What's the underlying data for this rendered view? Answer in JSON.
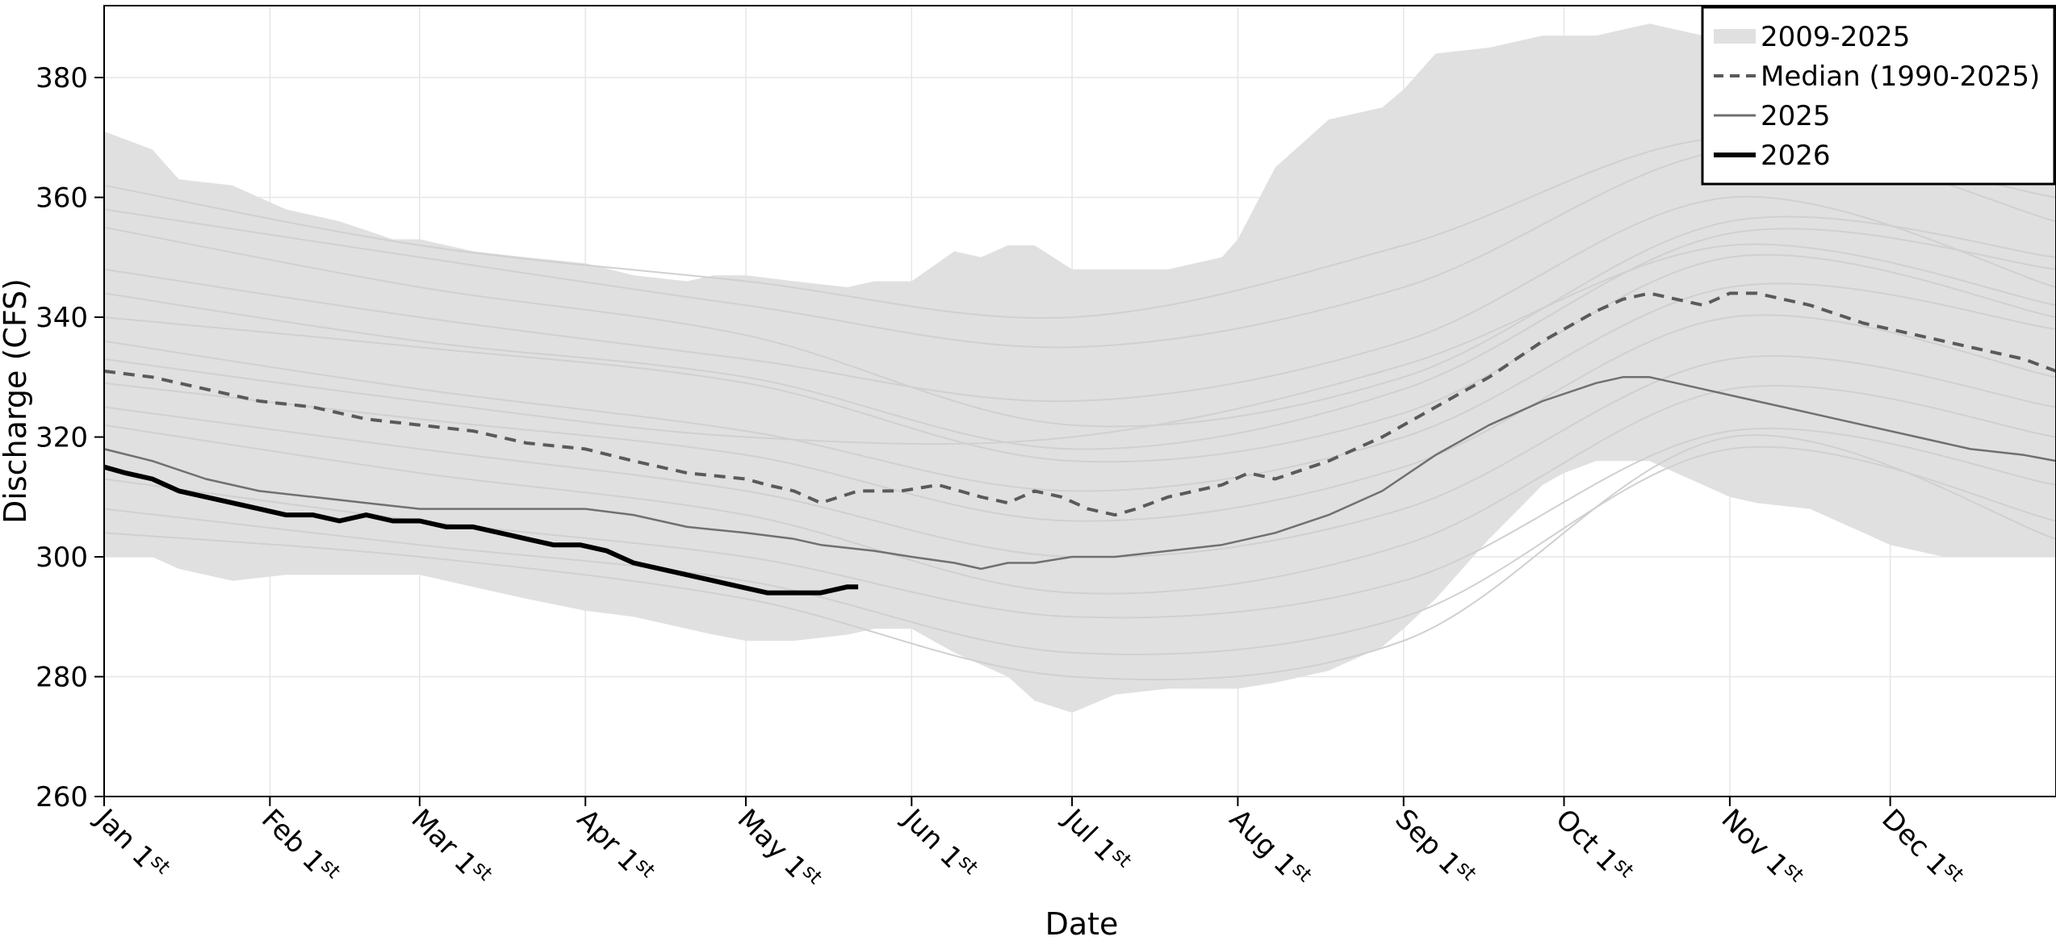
{
  "chart_data": {
    "type": "line",
    "title": "",
    "xlabel": "Date",
    "ylabel": "Discharge (CFS)",
    "ylim": [
      260,
      392
    ],
    "xlim_day_of_year": [
      1,
      366
    ],
    "yticks": [
      260,
      280,
      300,
      320,
      340,
      360,
      380
    ],
    "xticks": [
      {
        "day": 1,
        "month": "Jan",
        "num": "1",
        "sup": "st"
      },
      {
        "day": 32,
        "month": "Feb",
        "num": "1",
        "sup": "st"
      },
      {
        "day": 60,
        "month": "Mar",
        "num": "1",
        "sup": "st"
      },
      {
        "day": 91,
        "month": "Apr",
        "num": "1",
        "sup": "st"
      },
      {
        "day": 121,
        "month": "May",
        "num": "1",
        "sup": "st"
      },
      {
        "day": 152,
        "month": "Jun",
        "num": "1",
        "sup": "st"
      },
      {
        "day": 182,
        "month": "Jul",
        "num": "1",
        "sup": "st"
      },
      {
        "day": 213,
        "month": "Aug",
        "num": "1",
        "sup": "st"
      },
      {
        "day": 244,
        "month": "Sep",
        "num": "1",
        "sup": "st"
      },
      {
        "day": 274,
        "month": "Oct",
        "num": "1",
        "sup": "st"
      },
      {
        "day": 305,
        "month": "Nov",
        "num": "1",
        "sup": "st"
      },
      {
        "day": 335,
        "month": "Dec",
        "num": "1",
        "sup": "st"
      }
    ],
    "grid": true,
    "legend_position": "top-right",
    "legend": [
      {
        "label": "2009-2025",
        "style": "band"
      },
      {
        "label": "Median (1990-2025)",
        "style": "dashed"
      },
      {
        "label": "2025",
        "style": "thin"
      },
      {
        "label": "2026",
        "style": "thick"
      }
    ],
    "colors": {
      "band": "#e0e0e0",
      "faint_years": "#d0d0d0",
      "median": "#5a5a5a",
      "year_2025": "#707070",
      "year_2026": "#000000",
      "grid": "#e6e6e6"
    },
    "band": {
      "name": "2009-2025",
      "x": [
        1,
        10,
        15,
        25,
        35,
        45,
        55,
        60,
        70,
        80,
        91,
        100,
        110,
        115,
        121,
        130,
        140,
        145,
        152,
        160,
        165,
        170,
        175,
        182,
        190,
        200,
        210,
        213,
        220,
        230,
        240,
        244,
        250,
        260,
        270,
        274,
        280,
        290,
        295,
        300,
        305,
        310,
        320,
        325,
        330,
        335,
        345,
        355,
        366
      ],
      "upper": [
        371,
        368,
        363,
        362,
        358,
        356,
        353,
        353,
        351,
        350,
        349,
        347,
        346,
        347,
        347,
        346,
        345,
        346,
        346,
        351,
        350,
        352,
        352,
        348,
        348,
        348,
        350,
        353,
        365,
        373,
        375,
        378,
        384,
        385,
        387,
        387,
        387,
        389,
        388,
        387,
        385,
        380,
        375,
        372,
        370,
        368,
        366,
        364,
        362
      ],
      "lower": [
        300,
        300,
        298,
        296,
        297,
        297,
        297,
        297,
        295,
        293,
        291,
        290,
        288,
        287,
        286,
        286,
        287,
        288,
        288,
        284,
        282,
        280,
        276,
        274,
        277,
        278,
        278,
        278,
        279,
        281,
        285,
        288,
        293,
        303,
        312,
        314,
        316,
        316,
        314,
        312,
        310,
        309,
        308,
        306,
        304,
        302,
        300,
        300,
        300
      ]
    },
    "series": [
      {
        "name": "Median (1990-2025)",
        "x": [
          1,
          10,
          20,
          30,
          40,
          50,
          60,
          70,
          80,
          91,
          100,
          110,
          121,
          125,
          130,
          135,
          142,
          150,
          157,
          165,
          170,
          175,
          180,
          185,
          190,
          194,
          200,
          210,
          215,
          220,
          230,
          240,
          250,
          260,
          270,
          274,
          280,
          285,
          290,
          295,
          300,
          305,
          310,
          315,
          320,
          330,
          340,
          350,
          360,
          366
        ],
        "y": [
          331,
          330,
          328,
          326,
          325,
          323,
          322,
          321,
          319,
          318,
          316,
          314,
          313,
          312,
          311,
          309,
          311,
          311,
          312,
          310,
          309,
          311,
          310,
          308,
          307,
          308,
          310,
          312,
          314,
          313,
          316,
          320,
          325,
          330,
          336,
          338,
          341,
          343,
          344,
          343,
          342,
          344,
          344,
          343,
          342,
          339,
          337,
          335,
          333,
          331
        ]
      },
      {
        "name": "2025",
        "x": [
          1,
          10,
          20,
          30,
          40,
          50,
          60,
          70,
          80,
          91,
          100,
          110,
          121,
          130,
          135,
          145,
          152,
          160,
          165,
          170,
          175,
          182,
          190,
          200,
          210,
          220,
          230,
          240,
          250,
          260,
          270,
          280,
          285,
          290,
          295,
          300,
          310,
          320,
          330,
          340,
          350,
          360,
          366
        ],
        "y": [
          318,
          316,
          313,
          311,
          310,
          309,
          308,
          308,
          308,
          308,
          307,
          305,
          304,
          303,
          302,
          301,
          300,
          299,
          298,
          299,
          299,
          300,
          300,
          301,
          302,
          304,
          307,
          311,
          317,
          322,
          326,
          329,
          330,
          330,
          329,
          328,
          326,
          324,
          322,
          320,
          318,
          317,
          316
        ]
      },
      {
        "name": "2026",
        "x": [
          1,
          5,
          10,
          15,
          20,
          25,
          30,
          35,
          40,
          45,
          50,
          55,
          60,
          65,
          70,
          75,
          80,
          85,
          90,
          95,
          100,
          105,
          110,
          115,
          120,
          125,
          130,
          135,
          140,
          142
        ],
        "y": [
          315,
          314,
          313,
          311,
          310,
          309,
          308,
          307,
          307,
          306,
          307,
          306,
          306,
          305,
          305,
          304,
          303,
          302,
          302,
          301,
          299,
          298,
          297,
          296,
          295,
          294,
          294,
          294,
          295,
          295
        ]
      }
    ],
    "faint_years": [
      {
        "x": [
          1,
          60,
          121,
          182,
          244,
          305,
          366
        ],
        "y": [
          362,
          352,
          346,
          340,
          352,
          370,
          356
        ]
      },
      {
        "x": [
          1,
          60,
          121,
          182,
          244,
          305,
          366
        ],
        "y": [
          355,
          345,
          337,
          322,
          330,
          356,
          350
        ]
      },
      {
        "x": [
          1,
          60,
          121,
          182,
          244,
          305,
          366
        ],
        "y": [
          348,
          340,
          333,
          326,
          336,
          360,
          345
        ]
      },
      {
        "x": [
          1,
          60,
          121,
          182,
          244,
          305,
          366
        ],
        "y": [
          340,
          335,
          329,
          316,
          324,
          350,
          340
        ]
      },
      {
        "x": [
          1,
          60,
          121,
          182,
          244,
          305,
          366
        ],
        "y": [
          336,
          328,
          321,
          311,
          320,
          345,
          338
        ]
      },
      {
        "x": [
          1,
          60,
          121,
          182,
          244,
          305,
          366
        ],
        "y": [
          329,
          323,
          317,
          306,
          315,
          340,
          330
        ]
      },
      {
        "x": [
          1,
          60,
          121,
          182,
          244,
          305,
          366
        ],
        "y": [
          325,
          318,
          311,
          300,
          308,
          333,
          325
        ]
      },
      {
        "x": [
          1,
          60,
          121,
          182,
          244,
          305,
          366
        ],
        "y": [
          322,
          314,
          307,
          294,
          302,
          328,
          320
        ]
      },
      {
        "x": [
          1,
          60,
          121,
          182,
          244,
          305,
          366
        ],
        "y": [
          313,
          306,
          300,
          290,
          296,
          321,
          312
        ]
      },
      {
        "x": [
          1,
          60,
          121,
          182,
          244,
          305,
          366
        ],
        "y": [
          308,
          302,
          296,
          284,
          290,
          318,
          306
        ]
      },
      {
        "x": [
          1,
          60,
          121,
          182,
          244,
          305,
          366
        ],
        "y": [
          304,
          300,
          293,
          280,
          286,
          320,
          303
        ]
      },
      {
        "x": [
          1,
          60,
          121,
          182,
          244,
          305,
          366
        ],
        "y": [
          344,
          336,
          330,
          318,
          328,
          354,
          348
        ]
      },
      {
        "x": [
          1,
          60,
          121,
          182,
          244,
          305,
          366
        ],
        "y": [
          333,
          326,
          320,
          320,
          332,
          352,
          342
        ]
      },
      {
        "x": [
          1,
          60,
          121,
          182,
          244,
          305,
          366
        ],
        "y": [
          358,
          350,
          342,
          335,
          345,
          368,
          360
        ]
      }
    ]
  }
}
